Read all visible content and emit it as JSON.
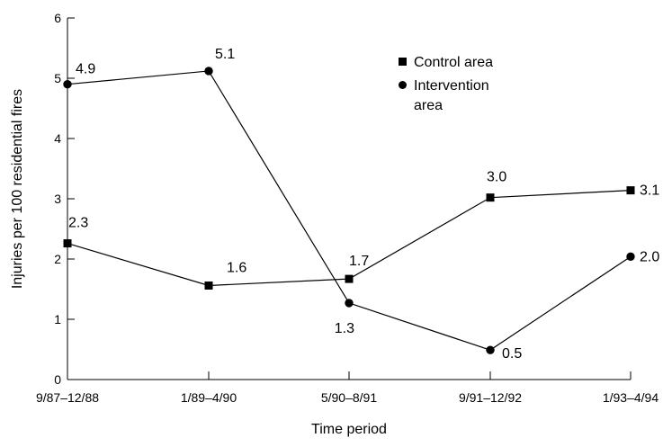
{
  "chart_data": {
    "type": "line",
    "xlabel": "Time period",
    "ylabel": "Injuries per 100 residential fires",
    "categories": [
      "9/87–12/88",
      "1/89–4/90",
      "5/90–8/91",
      "9/91–12/92",
      "1/93–4/94"
    ],
    "ylim": [
      0,
      6
    ],
    "yticks": [
      "0",
      "1",
      "2",
      "3",
      "4",
      "5",
      "6"
    ],
    "grid": false,
    "legend_position": "top-right",
    "series": [
      {
        "name": "Control area",
        "marker": "square",
        "values": [
          2.26,
          1.56,
          1.67,
          3.02,
          3.14
        ],
        "labels": [
          "2.3",
          "1.6",
          "1.7",
          "3.0",
          "3.1"
        ]
      },
      {
        "name": "Intervention area",
        "legend_lines": [
          "Intervention",
          "area"
        ],
        "marker": "circle",
        "values": [
          4.9,
          5.12,
          1.27,
          0.49,
          2.04
        ],
        "labels": [
          "4.9",
          "5.1",
          "1.3",
          "0.5",
          "2.0"
        ]
      }
    ]
  }
}
